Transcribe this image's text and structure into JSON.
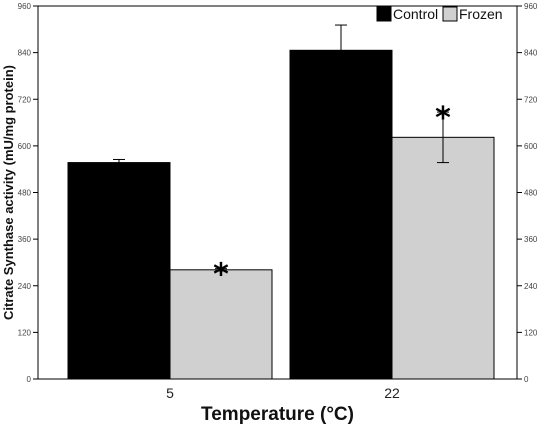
{
  "chart_data": {
    "type": "bar",
    "title": "",
    "xlabel": "Temperature (°C)",
    "ylabel": "Citrate Synthase activity (mU/mg protein)",
    "categories": [
      "5",
      "22"
    ],
    "ylim": [
      0,
      960
    ],
    "yticks": [
      "0",
      "120",
      "240",
      "360",
      "480",
      "600",
      "720",
      "840",
      "960"
    ],
    "right_axis": true,
    "grid": false,
    "legend_position": "top-right",
    "series": [
      {
        "name": "Control",
        "color": "#000000",
        "values": [
          557,
          846
        ],
        "errors": [
          8,
          65
        ]
      },
      {
        "name": "Frozen",
        "color": "#d0d0d0",
        "values": [
          281,
          622
        ],
        "errors": [
          3,
          65
        ]
      }
    ],
    "annotations": [
      {
        "category": "5",
        "series": "Frozen",
        "text": "*"
      },
      {
        "category": "22",
        "series": "Frozen",
        "text": "*"
      }
    ]
  }
}
